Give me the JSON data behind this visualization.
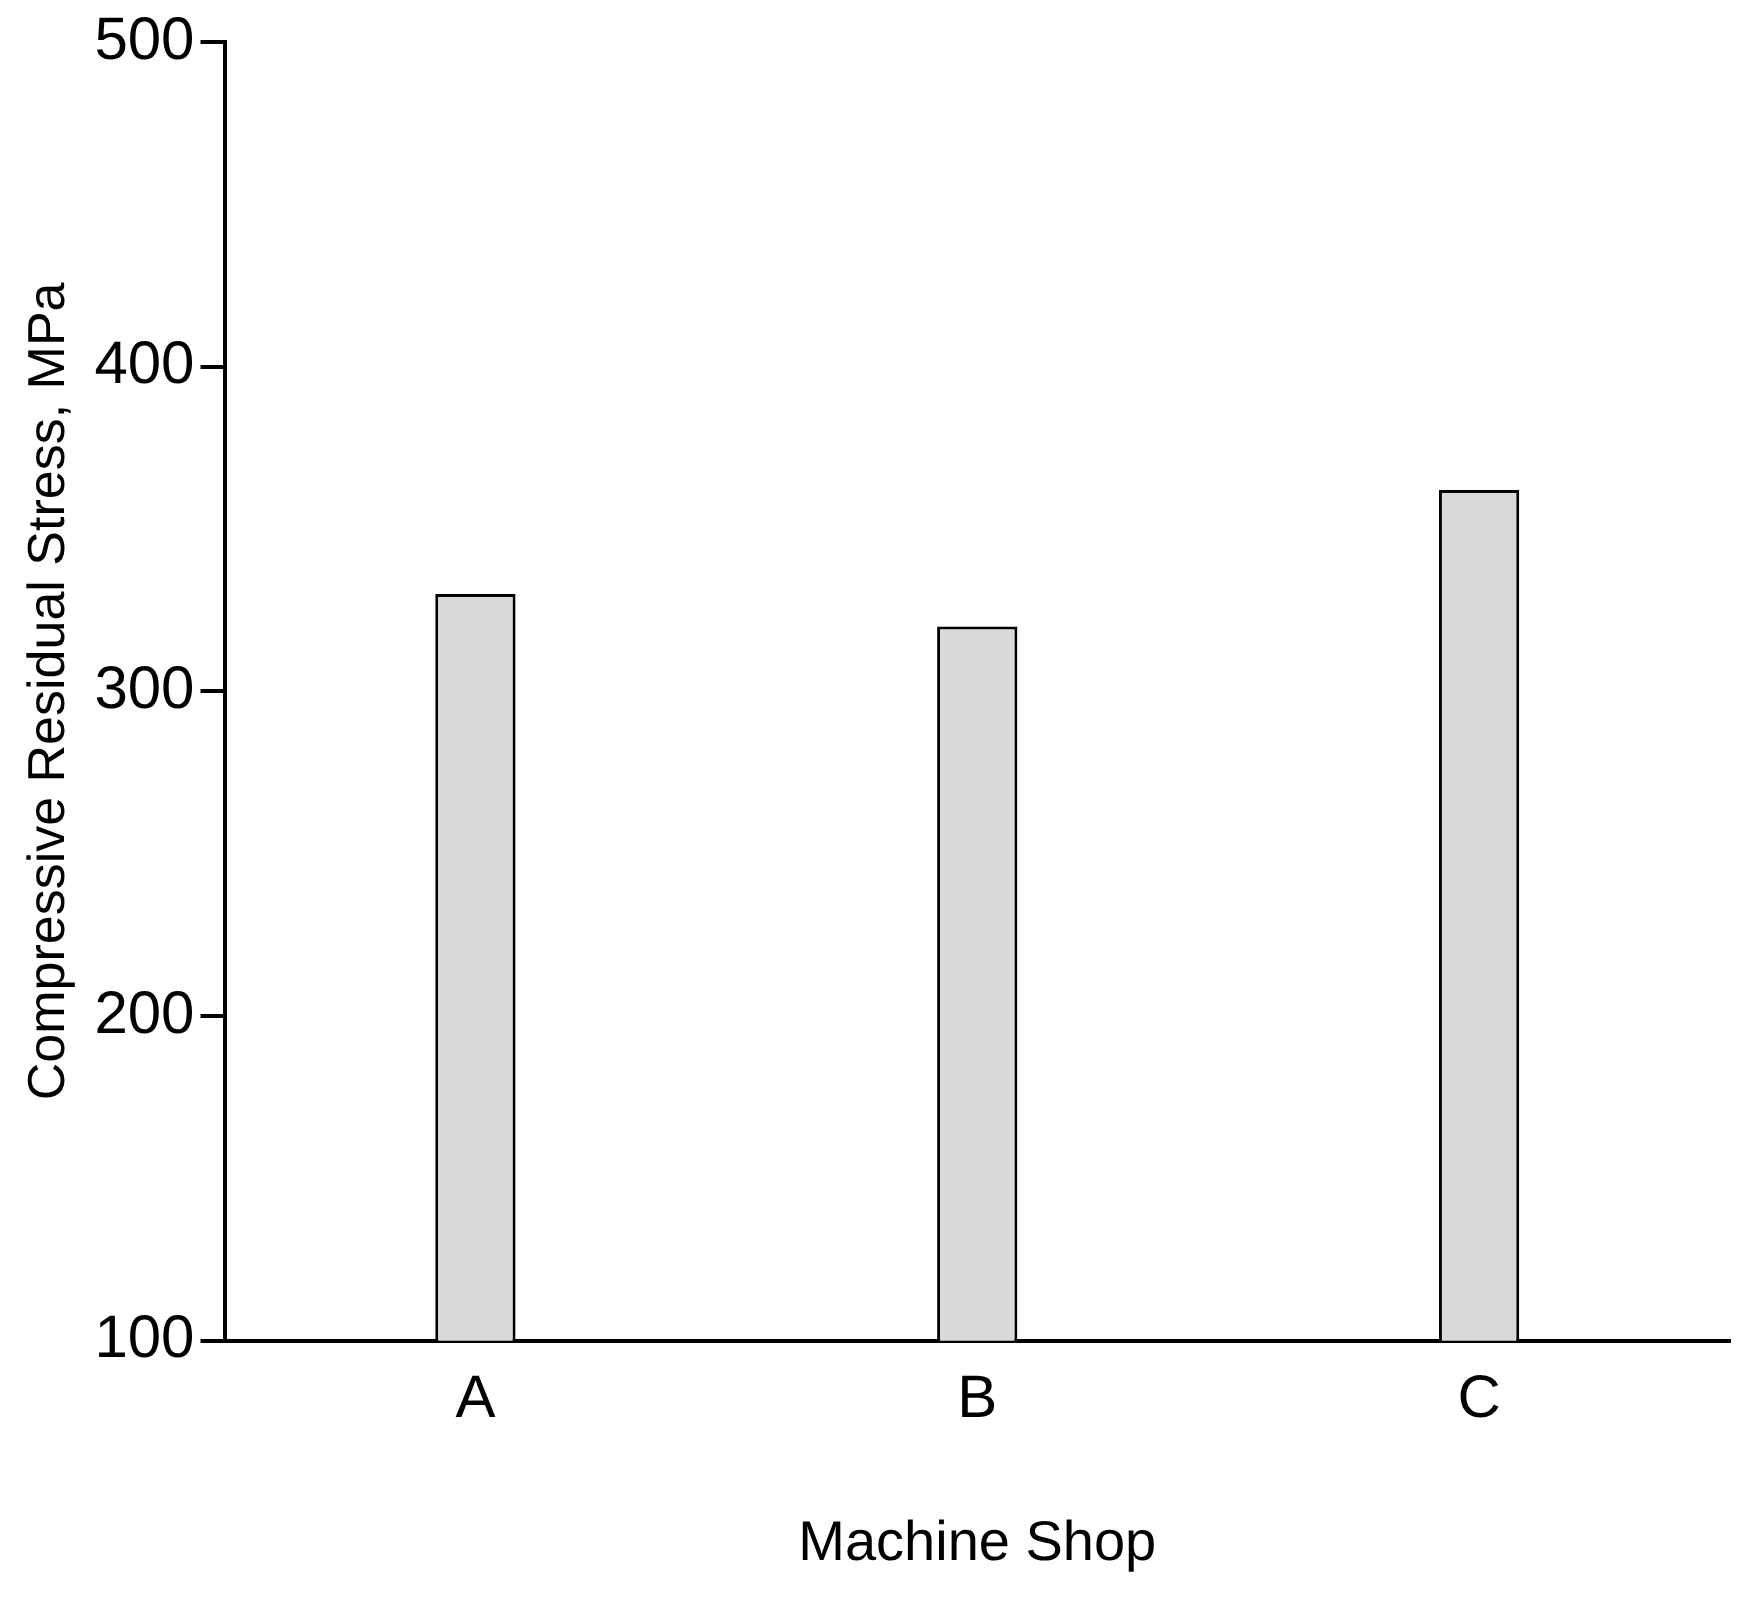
{
  "chart_data": {
    "type": "bar",
    "xlabel": "Machine Shop",
    "ylabel": "Compressive Residual Stress, MPa",
    "categories": [
      "A",
      "B",
      "C"
    ],
    "series": [
      {
        "color": "#d9d9d9",
        "values": [
          330,
          320,
          362
        ]
      }
    ],
    "ylim": [
      100,
      500
    ],
    "yticks": [
      100,
      200,
      300,
      400,
      500
    ],
    "grid": false,
    "legend": false
  }
}
